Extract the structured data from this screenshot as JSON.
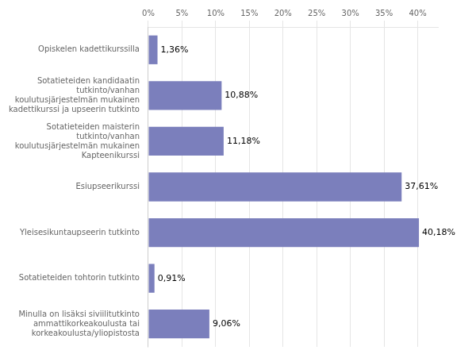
{
  "chart_data": {
    "type": "bar",
    "orientation": "horizontal",
    "categories": [
      "Opiskelen kadettikurssilla",
      "Sotatieteiden kandidaatin\ntutkinto/vanhan\nkoulutusjärjestelmän mukainen\nkadettikurssi ja upseerin tutkinto",
      "Sotatieteiden maisterin\ntutkinto/vanhan\nkoulutusjärjestelmän mukainen\nKapteenikurssi",
      "Esiupseerikurssi",
      "Yleisesikuntaupseerin tutkinto",
      "Sotatieteiden tohtorin tutkinto",
      "Minulla on lisäksi siviilitutkinto\nammattikorkeakoulusta tai\nkorkeakoulusta/yliopistosta"
    ],
    "values": [
      1.36,
      10.88,
      11.18,
      37.61,
      40.18,
      0.91,
      9.06
    ],
    "value_labels": [
      "1,36%",
      "10,88%",
      "11,18%",
      "37,61%",
      "40,18%",
      "0,91%",
      "9,06%"
    ],
    "data_labels": true,
    "color": "#7b7fbc",
    "xlim": [
      0,
      43
    ],
    "xticks": [
      {
        "value": 0,
        "label": "0%"
      },
      {
        "value": 5,
        "label": "5%"
      },
      {
        "value": 10,
        "label": "10%"
      },
      {
        "value": 15,
        "label": "15%"
      },
      {
        "value": 20,
        "label": "20%"
      },
      {
        "value": 25,
        "label": "25%"
      },
      {
        "value": 30,
        "label": "30%"
      },
      {
        "value": 35,
        "label": "35%"
      },
      {
        "value": 40,
        "label": "40%"
      }
    ],
    "grid": true
  }
}
